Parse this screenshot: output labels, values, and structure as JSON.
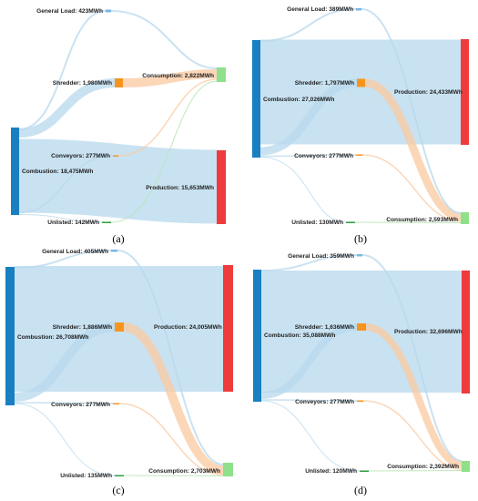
{
  "colors": {
    "combustion": "#1a7fc1",
    "shredder": "#f7941d",
    "consumption": "#8fe08a",
    "production": "#ef3b3b",
    "general_load": "#7ab7e0",
    "conveyors": "#f7941d",
    "unlisted": "#2f9e3f",
    "flow_blue": "#b7d8ee",
    "flow_orange": "#f9c9a0",
    "flow_green": "#b9e6b5"
  },
  "panels": [
    {
      "caption": "(a)",
      "nodes": {
        "combustion": "Combustion: 18,475MWh",
        "general_load": "General Load: 423MWh",
        "shredder": "Shredder: 1,980MWh",
        "conveyors": "Conveyors: 277MWh",
        "unlisted": "Unlisted: 142MWh",
        "consumption": "Consumption: 2,822MWh",
        "production": "Production: 15,653MWh"
      },
      "values": {
        "combustion": 18475,
        "general_load": 423,
        "shredder": 1980,
        "conveyors": 277,
        "unlisted": 142,
        "consumption": 2822,
        "production": 15653
      }
    },
    {
      "caption": "(b)",
      "nodes": {
        "combustion": "Combustion: 27,026MWh",
        "general_load": "General Load: 389MWh",
        "shredder": "Shredder: 1,797MWh",
        "conveyors": "Conveyors: 277MWh",
        "unlisted": "Unlisted: 130MWh",
        "consumption": "Consumption: 2,593MWh",
        "production": "Production: 24,433MWh"
      },
      "values": {
        "combustion": 27026,
        "general_load": 389,
        "shredder": 1797,
        "conveyors": 277,
        "unlisted": 130,
        "consumption": 2593,
        "production": 24433
      }
    },
    {
      "caption": "(c)",
      "nodes": {
        "combustion": "Combustion: 26,708MWh",
        "general_load": "General Load: 405MWh",
        "shredder": "Shredder: 1,886MWh",
        "conveyors": "Conveyors: 277MWh",
        "unlisted": "Unlisted: 135MWh",
        "consumption": "Consumption: 2,703MWh",
        "production": "Production: 24,005MWh"
      },
      "values": {
        "combustion": 26708,
        "general_load": 405,
        "shredder": 1886,
        "conveyors": 277,
        "unlisted": 135,
        "consumption": 2703,
        "production": 24005
      }
    },
    {
      "caption": "(d)",
      "nodes": {
        "combustion": "Combustion: 35,088MWh",
        "general_load": "General Load: 359MWh",
        "shredder": "Shredder: 1,636MWh",
        "conveyors": "Conveyors: 277MWh",
        "unlisted": "Unlisted: 120MWh",
        "consumption": "Consumption: 2,392MWh",
        "production": "Production: 32,696MWh"
      },
      "values": {
        "combustion": 35088,
        "general_load": 359,
        "shredder": 1636,
        "conveyors": 277,
        "unlisted": 120,
        "consumption": 2392,
        "production": 32696
      }
    }
  ]
}
